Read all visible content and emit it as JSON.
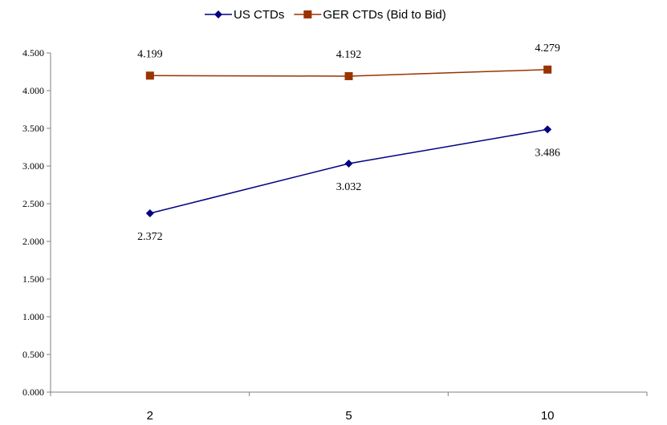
{
  "chart_data": {
    "type": "line",
    "categories": [
      "2",
      "5",
      "10"
    ],
    "series": [
      {
        "name": "US CTDs",
        "values": [
          2.372,
          3.032,
          3.486
        ],
        "labels": [
          "2.372",
          "3.032",
          "3.486"
        ],
        "color": "#000080",
        "marker": "diamond"
      },
      {
        "name": "GER CTDs (Bid to Bid)",
        "values": [
          4.199,
          4.192,
          4.279
        ],
        "labels": [
          "4.199",
          "4.192",
          "4.279"
        ],
        "color": "#993300",
        "marker": "square"
      }
    ],
    "ylim": [
      0,
      4.5
    ],
    "yticks": [
      "0.000",
      "0.500",
      "1.000",
      "1.500",
      "2.000",
      "2.500",
      "3.000",
      "3.500",
      "4.000",
      "4.500"
    ],
    "title": "",
    "xlabel": "",
    "ylabel": "",
    "legend": "top-center",
    "grid": false
  }
}
